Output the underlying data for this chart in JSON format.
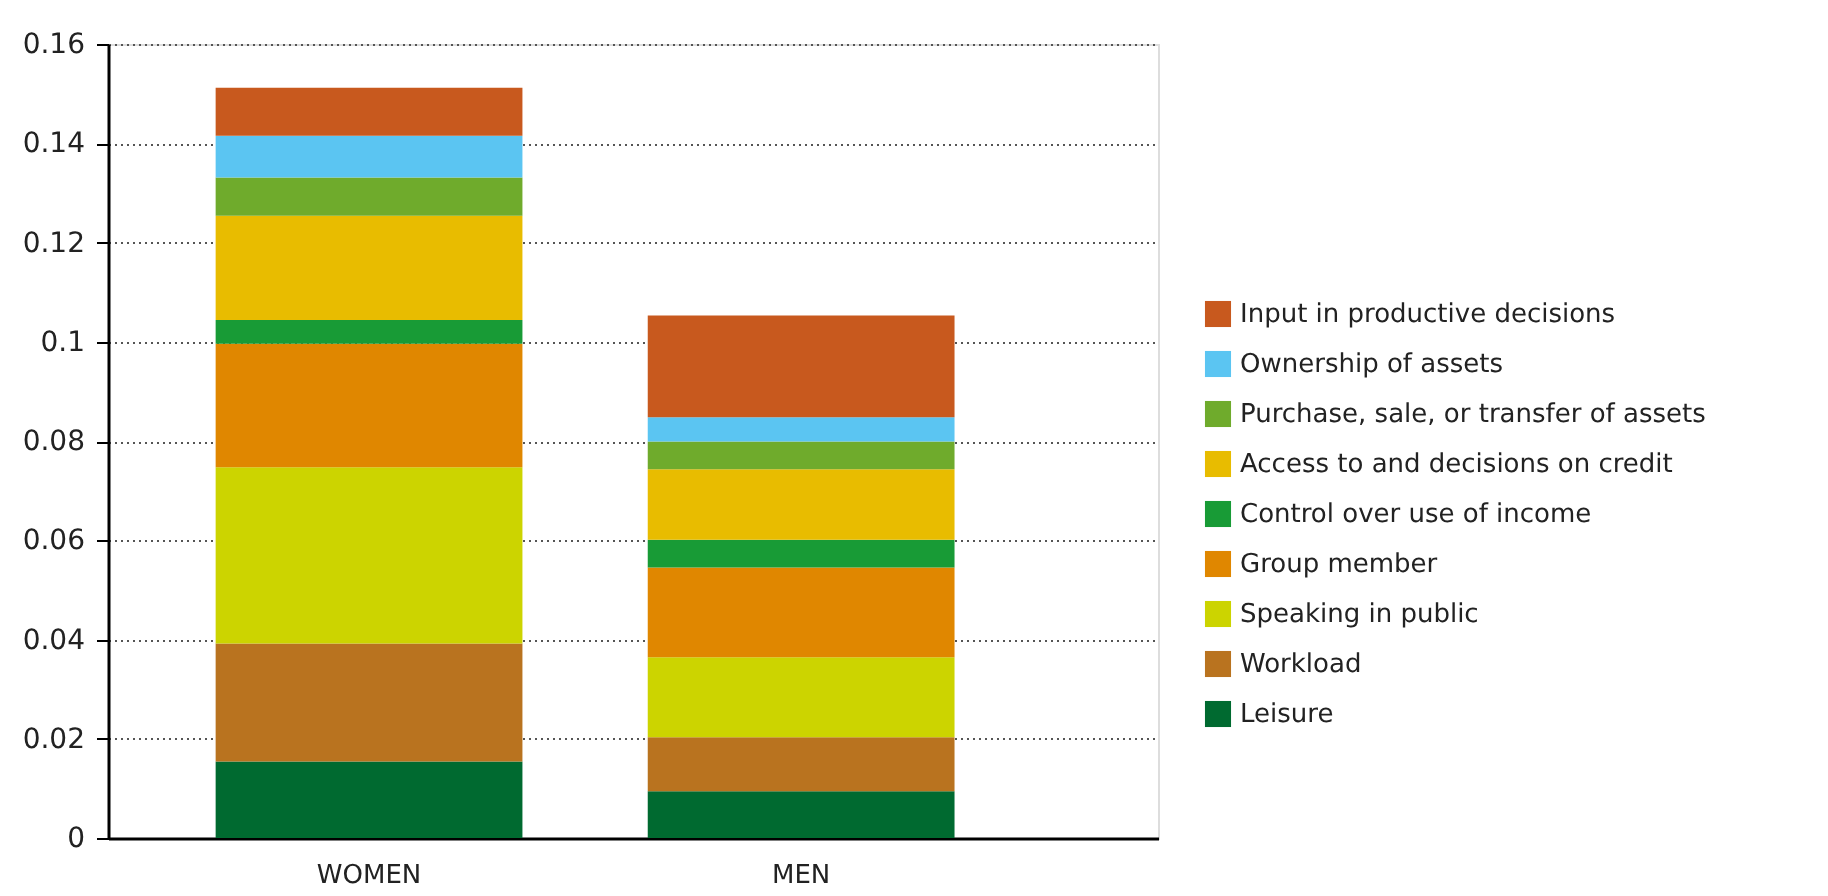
{
  "chart_data": {
    "type": "bar",
    "stacked": true,
    "categories": [
      "WOMEN",
      "MEN"
    ],
    "series": [
      {
        "name": "Leisure",
        "color": "#006a30",
        "values": [
          0.0154,
          0.0094
        ]
      },
      {
        "name": "Workload",
        "color": "#b9731f",
        "values": [
          0.0238,
          0.0109
        ]
      },
      {
        "name": "Speaking in public",
        "color": "#ccd400",
        "values": [
          0.0355,
          0.0161
        ]
      },
      {
        "name": "Group member",
        "color": "#e08700",
        "values": [
          0.0249,
          0.0181
        ]
      },
      {
        "name": "Control over use of income",
        "color": "#189b36",
        "values": [
          0.0048,
          0.0056
        ]
      },
      {
        "name": "Access to and decisions on credit",
        "color": "#e8bc00",
        "values": [
          0.021,
          0.0142
        ]
      },
      {
        "name": "Purchase, sale, or transfer of assets",
        "color": "#6fab2c",
        "values": [
          0.0077,
          0.0056
        ]
      },
      {
        "name": "Ownership of assets",
        "color": "#5bc5f2",
        "values": [
          0.0084,
          0.0049
        ]
      },
      {
        "name": "Input in productive decisions",
        "color": "#c8591e",
        "values": [
          0.0097,
          0.0205
        ]
      }
    ],
    "ylim": [
      0,
      0.16
    ],
    "yticks": [
      0,
      0.02,
      0.04,
      0.06,
      0.08,
      0.1,
      0.12,
      0.14,
      0.16
    ],
    "grid": "y",
    "legend": "right"
  }
}
